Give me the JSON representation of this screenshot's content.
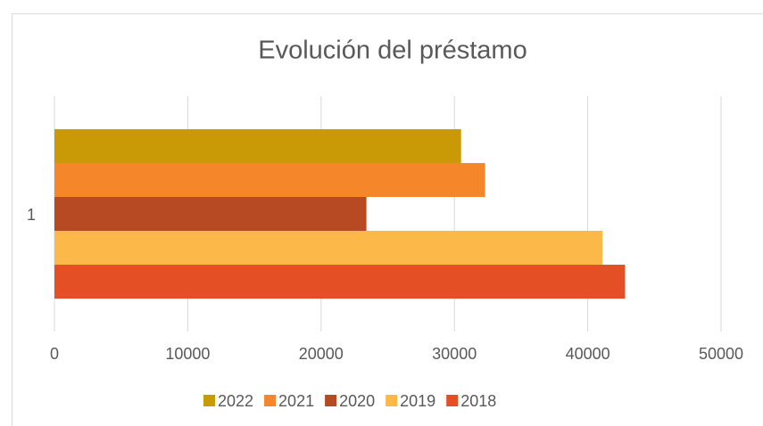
{
  "chart_data": {
    "type": "bar",
    "orientation": "horizontal",
    "title": "Evolución del préstamo",
    "categories": [
      "1"
    ],
    "series": [
      {
        "name": "2022",
        "color": "#c99a06",
        "values": [
          30500
        ]
      },
      {
        "name": "2021",
        "color": "#f5862a",
        "values": [
          32300
        ]
      },
      {
        "name": "2020",
        "color": "#b84a23",
        "values": [
          23400
        ]
      },
      {
        "name": "2019",
        "color": "#fcb94a",
        "values": [
          41100
        ]
      },
      {
        "name": "2018",
        "color": "#e54f25",
        "values": [
          42800
        ]
      }
    ],
    "xlim": [
      0,
      50000
    ],
    "xticks": [
      0,
      10000,
      20000,
      30000,
      40000,
      50000
    ],
    "grid": true,
    "legend": "bottom"
  }
}
